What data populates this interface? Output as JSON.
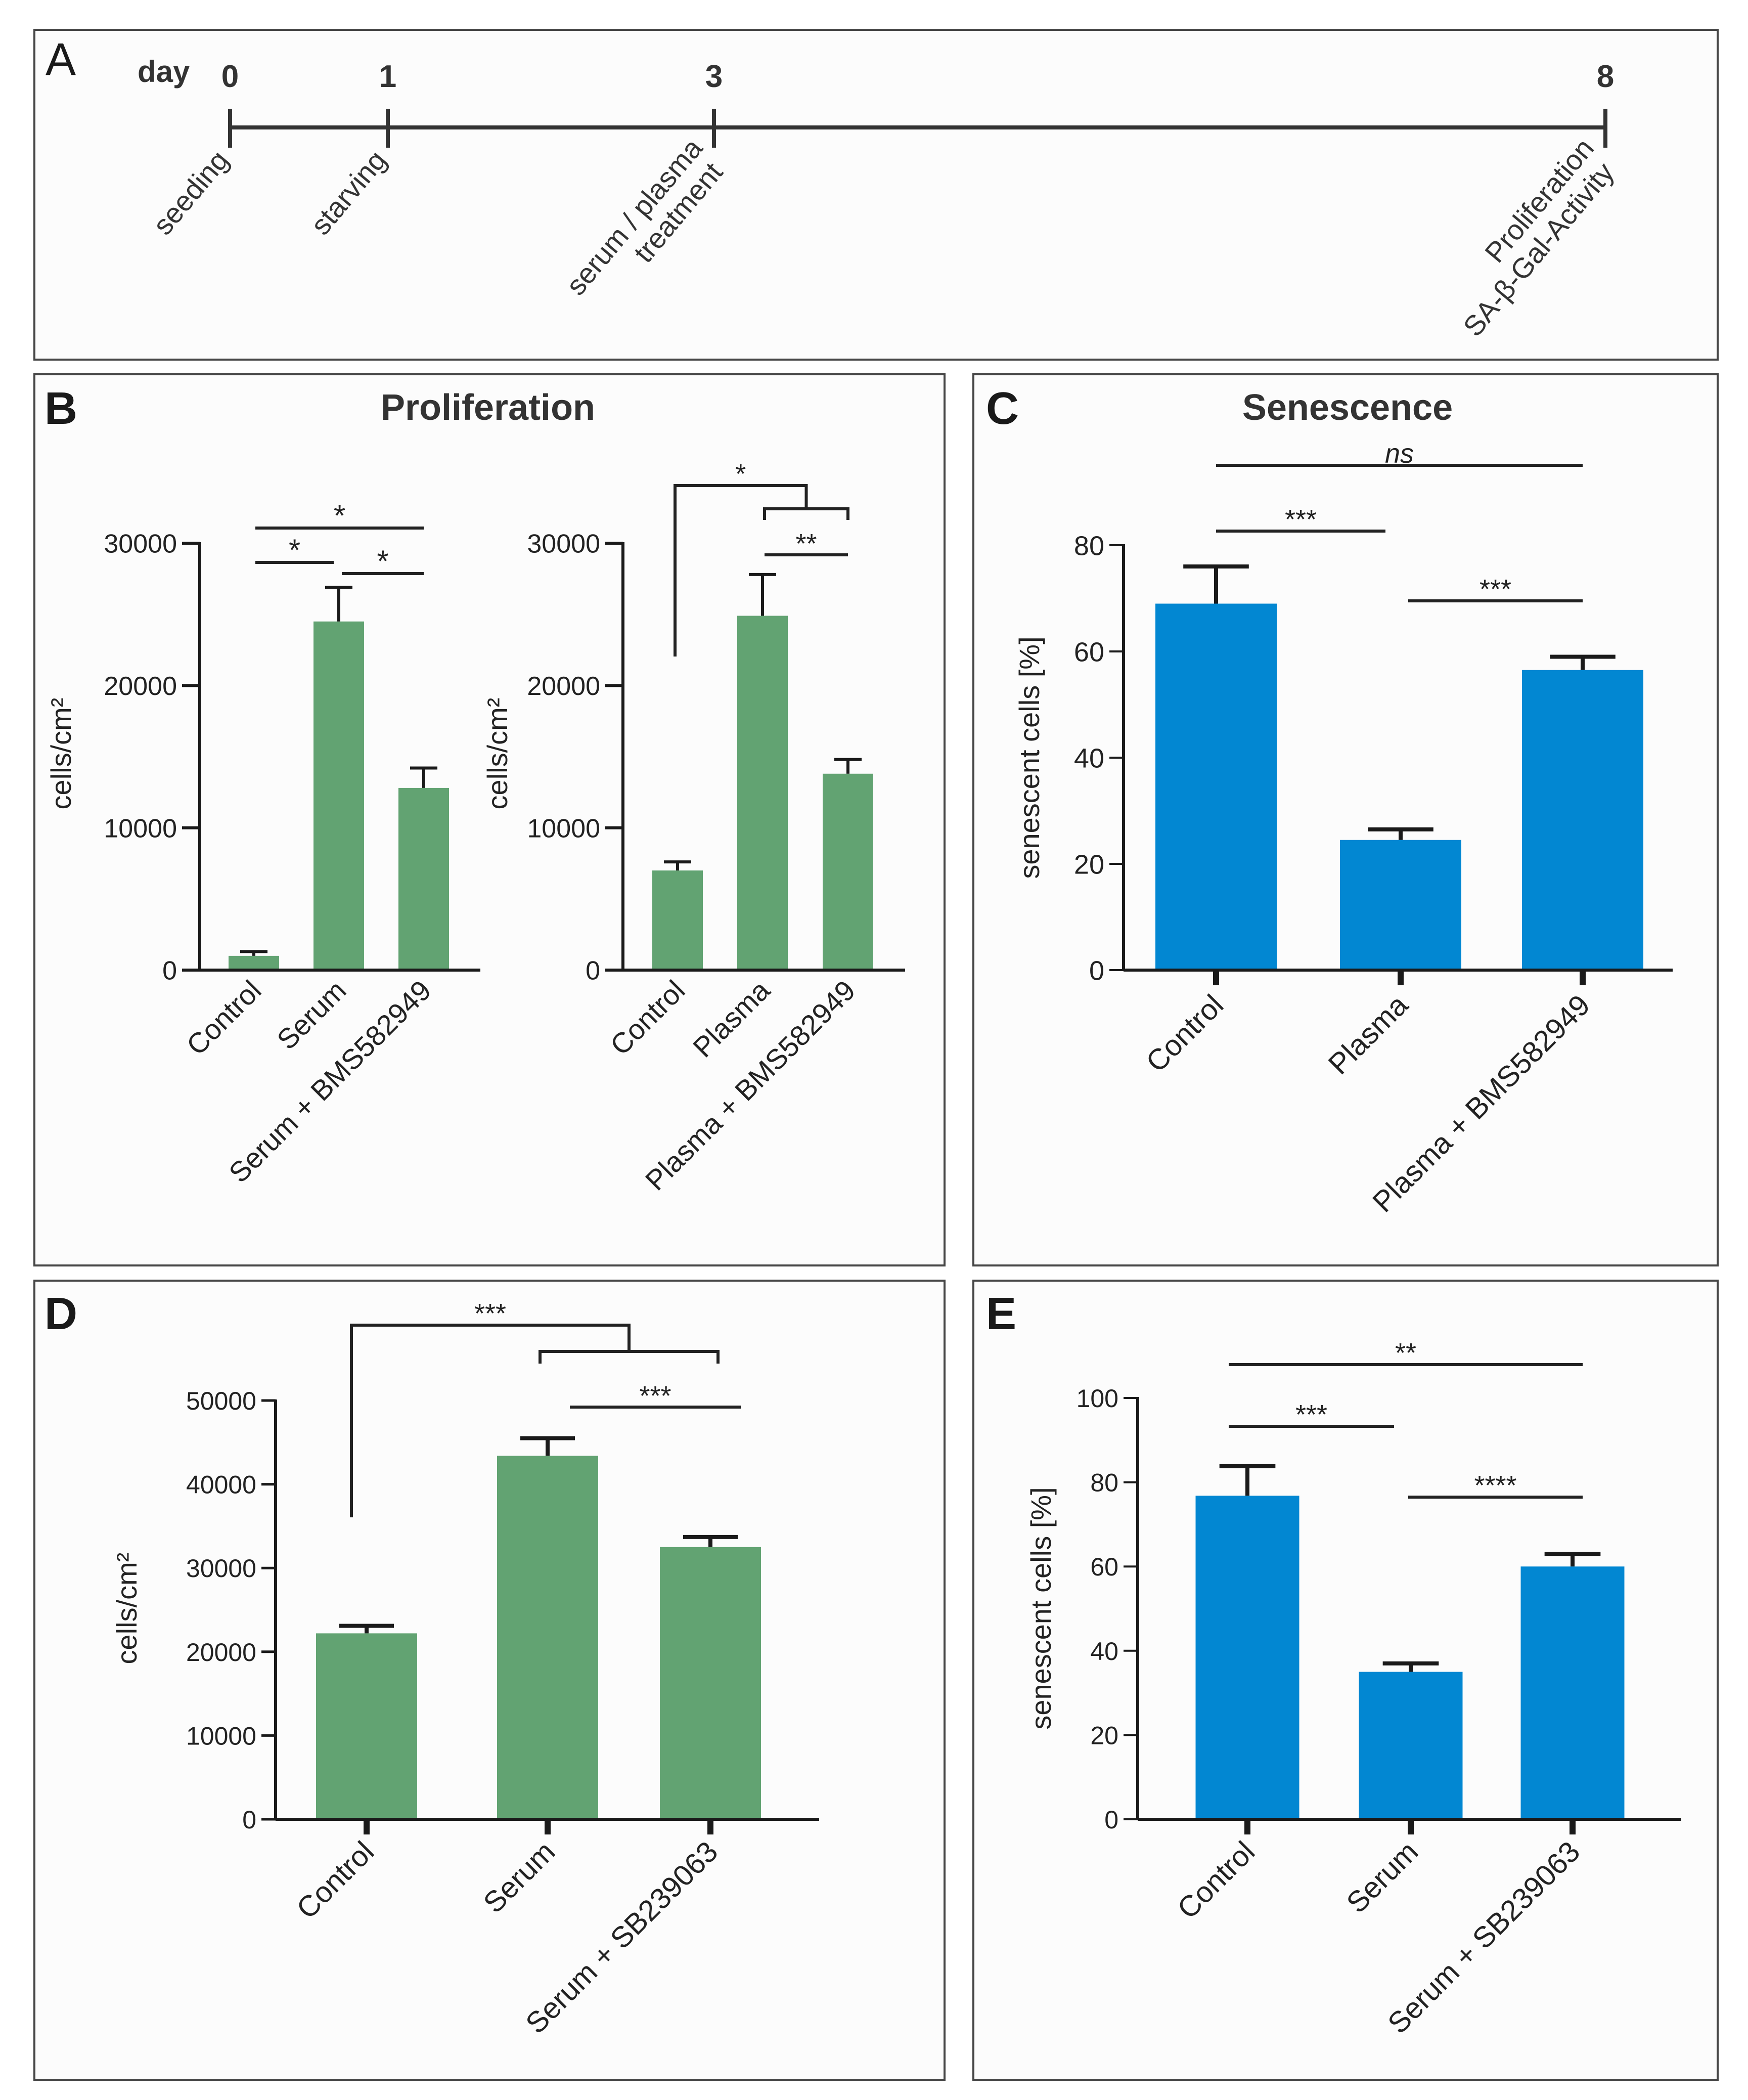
{
  "colors": {
    "green": "#62a372",
    "blue": "#0287d2",
    "panel_bg": "#fcfcfc",
    "border": "#464646",
    "ink": "#1a1a1a"
  },
  "panelA": {
    "letter": "A",
    "day_label": "day",
    "days": [
      {
        "day": "0",
        "labels": [
          "seeding"
        ]
      },
      {
        "day": "1",
        "labels": [
          "starving"
        ]
      },
      {
        "day": "3",
        "labels": [
          "serum / plasma",
          "treatment"
        ]
      },
      {
        "day": "8",
        "labels": [
          "Proliferation",
          "SA-β-Gal-Activity"
        ]
      }
    ]
  },
  "panelB": {
    "letter": "B",
    "title": "Proliferation"
  },
  "panelC": {
    "letter": "C",
    "title": "Senescence"
  },
  "panelD": {
    "letter": "D"
  },
  "panelE": {
    "letter": "E"
  },
  "chart_data": [
    {
      "id": "B1",
      "panel": "B",
      "type": "bar",
      "title": "Proliferation",
      "categories": [
        "Control",
        "Serum",
        "Serum + BMS582949"
      ],
      "values": [
        1000,
        24500,
        12800
      ],
      "errors": [
        300,
        2400,
        1400
      ],
      "ylabel": "cells/cm²",
      "ylim": [
        0,
        30000
      ],
      "yticks": [
        "0",
        "10000",
        "20000",
        "30000"
      ],
      "color": "green",
      "significance": [
        {
          "from": 0,
          "to": 1,
          "label": "*"
        },
        {
          "from": 1,
          "to": 2,
          "label": "*"
        },
        {
          "from": 0,
          "to": 2,
          "label": "*"
        }
      ]
    },
    {
      "id": "B2",
      "panel": "B",
      "type": "bar",
      "categories": [
        "Control",
        "Plasma",
        "Plasma + BMS582949"
      ],
      "values": [
        7000,
        24900,
        13800
      ],
      "errors": [
        600,
        2900,
        1000
      ],
      "ylabel": "cells/cm²",
      "ylim": [
        0,
        30000
      ],
      "yticks": [
        "0",
        "10000",
        "20000",
        "30000"
      ],
      "color": "green",
      "significance": [
        {
          "from": 1,
          "to": 2,
          "label": "**"
        },
        {
          "from": 0,
          "to": [
            1,
            2
          ],
          "label": "*"
        }
      ]
    },
    {
      "id": "C",
      "panel": "C",
      "type": "bar",
      "title": "Senescence",
      "categories": [
        "Control",
        "Plasma",
        "Plasma + BMS582949"
      ],
      "values": [
        69,
        24.5,
        56.5
      ],
      "errors": [
        7,
        2,
        2.5
      ],
      "ylabel": "senescent cells [%]",
      "ylim": [
        0,
        80
      ],
      "yticks": [
        "0",
        "20",
        "40",
        "60",
        "80"
      ],
      "color": "blue",
      "significance": [
        {
          "from": 0,
          "to": 1,
          "label": "***"
        },
        {
          "from": 1,
          "to": 2,
          "label": "***"
        },
        {
          "from": 0,
          "to": 2,
          "label": "ns"
        }
      ]
    },
    {
      "id": "D",
      "panel": "D",
      "type": "bar",
      "categories": [
        "Control",
        "Serum",
        "Serum + SB239063"
      ],
      "values": [
        22200,
        43400,
        32500
      ],
      "errors": [
        900,
        2100,
        1200
      ],
      "ylabel": "cells/cm²",
      "ylim": [
        0,
        50000
      ],
      "yticks": [
        "0",
        "10000",
        "20000",
        "30000",
        "40000",
        "50000"
      ],
      "color": "green",
      "significance": [
        {
          "from": 1,
          "to": 2,
          "label": "***"
        },
        {
          "from": 0,
          "to": [
            1,
            2
          ],
          "label": "***"
        }
      ]
    },
    {
      "id": "E",
      "panel": "E",
      "type": "bar",
      "categories": [
        "Control",
        "Serum",
        "Serum + SB239063"
      ],
      "values": [
        76.8,
        35,
        60
      ],
      "errors": [
        7,
        2,
        3
      ],
      "ylabel": "senescent cells [%]",
      "ylim": [
        0,
        100
      ],
      "yticks": [
        "0",
        "20",
        "40",
        "60",
        "80",
        "100"
      ],
      "color": "blue",
      "significance": [
        {
          "from": 0,
          "to": 1,
          "label": "***"
        },
        {
          "from": 1,
          "to": 2,
          "label": "****"
        },
        {
          "from": 0,
          "to": 2,
          "label": "**"
        }
      ]
    }
  ]
}
